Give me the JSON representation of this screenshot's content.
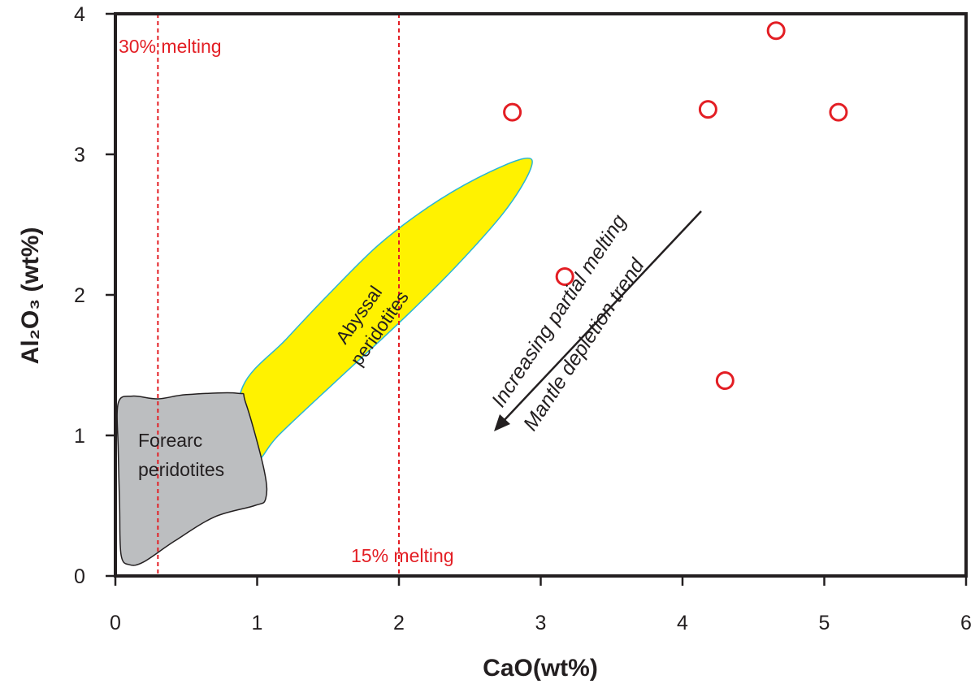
{
  "chart_data": {
    "type": "scatter",
    "title": "",
    "xlabel": "CaO(wt%)",
    "ylabel": "Al₂O₃ (wt%)",
    "xlim": [
      0,
      6
    ],
    "ylim": [
      0,
      4
    ],
    "xticks": [
      "0",
      "1",
      "2",
      "3",
      "4",
      "5",
      "6"
    ],
    "yticks": [
      "0",
      "1",
      "2",
      "3",
      "4"
    ],
    "grid": false,
    "colors": {
      "points": "#e31e24",
      "melting_lines": "#e31e24",
      "abyssal_fill": "#fff200",
      "abyssal_stroke": "#29b6d6",
      "forearc_fill": "#bcbec0",
      "axis": "#231f20"
    },
    "series": [
      {
        "x": [
          2.8,
          4.66,
          4.18,
          5.1,
          3.17,
          4.3
        ],
        "y": [
          3.3,
          3.88,
          3.32,
          3.3,
          2.13,
          1.39
        ]
      }
    ],
    "reference_lines": [
      {
        "x": 0.3,
        "label": "30% melting"
      },
      {
        "x": 2.0,
        "label": "15% melting"
      }
    ],
    "regions": [
      {
        "label_lines": [
          "Abyssal",
          "peridotites"
        ],
        "shape": "ellipse",
        "polygon": [
          [
            0.9,
            1.35
          ],
          [
            1.2,
            1.68
          ],
          [
            1.5,
            2.0
          ],
          [
            1.85,
            2.35
          ],
          [
            2.2,
            2.62
          ],
          [
            2.55,
            2.83
          ],
          [
            2.88,
            2.97
          ],
          [
            2.93,
            2.9
          ],
          [
            2.75,
            2.6
          ],
          [
            2.4,
            2.2
          ],
          [
            2.0,
            1.8
          ],
          [
            1.55,
            1.38
          ],
          [
            1.15,
            1.0
          ],
          [
            1.0,
            0.82
          ],
          [
            0.85,
            0.88
          ]
        ]
      },
      {
        "label_lines": [
          "Forearc",
          "peridotites"
        ],
        "shape": "polygon",
        "polygon": [
          [
            0.02,
            1.23
          ],
          [
            0.12,
            1.28
          ],
          [
            0.3,
            1.26
          ],
          [
            0.5,
            1.29
          ],
          [
            0.86,
            1.3
          ],
          [
            0.92,
            1.23
          ],
          [
            1.05,
            0.75
          ],
          [
            1.06,
            0.55
          ],
          [
            0.98,
            0.5
          ],
          [
            0.7,
            0.42
          ],
          [
            0.42,
            0.25
          ],
          [
            0.2,
            0.1
          ],
          [
            0.1,
            0.08
          ],
          [
            0.04,
            0.15
          ],
          [
            0.03,
            0.5
          ],
          [
            0.02,
            0.9
          ]
        ]
      }
    ],
    "annotations": {
      "trend_line1": "Increasing partial melting",
      "trend_line2": "Mantle depletion trend"
    }
  }
}
